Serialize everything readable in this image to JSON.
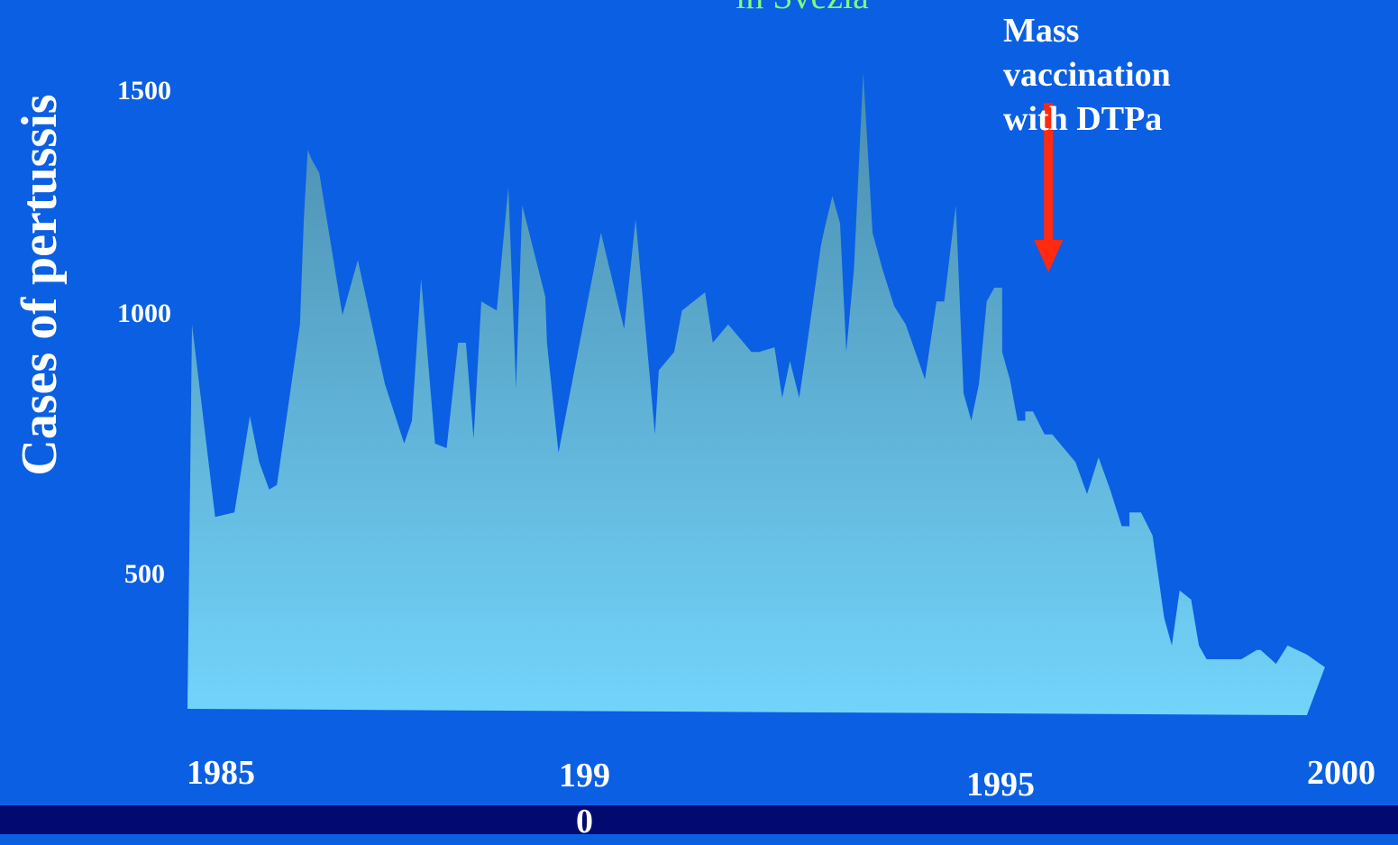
{
  "slide": {
    "title_fragment": "in Svezia",
    "annotation": "Mass\nvaccination\nwith DTPa",
    "colors": {
      "background": "#0b5fe2",
      "footer_band": "#020a72",
      "title": "#7cfc7c",
      "arrow": "#ff2a10",
      "area_top": "#4a8cad",
      "area_bottom": "#73d4fb"
    }
  },
  "chart_data": {
    "type": "area",
    "title": "in Svezia",
    "xlabel": "",
    "ylabel": "Cases of pertussis",
    "yticks": [
      500,
      1000,
      1500
    ],
    "xtick_labels": [
      {
        "value": 1985,
        "label": "1985"
      },
      {
        "value": 1990,
        "label": "199\n0"
      },
      {
        "value": 1995,
        "label": "1995"
      },
      {
        "value": 2000,
        "label": "2000"
      }
    ],
    "annotations": [
      {
        "text": "Mass\nvaccination\nwith DTPa",
        "x": 1996.1,
        "arrow": "down"
      }
    ],
    "grid": false,
    "legend": "none",
    "x": [
      1985.0,
      1985.3,
      1985.55,
      1985.75,
      1985.87,
      1985.87,
      1986.0,
      1986.0,
      1986.1,
      1986.4,
      1986.45,
      1986.5,
      1986.55,
      1986.65,
      1986.95,
      1987.15,
      1987.15,
      1987.5,
      1987.75,
      1987.75,
      1987.85,
      1987.85,
      1987.97,
      1988.15,
      1988.3,
      1988.45,
      1988.55,
      1988.65,
      1988.75,
      1988.95,
      1989.1,
      1989.1,
      1989.2,
      1989.28,
      1989.28,
      1989.58,
      1989.58,
      1989.6,
      1989.6,
      1989.75,
      1989.75,
      1990.3,
      1990.6,
      1990.75,
      1991.0,
      1991.05,
      1991.05,
      1991.25,
      1991.35,
      1991.35,
      1991.65,
      1991.75,
      1991.75,
      1991.95,
      1992.25,
      1992.35,
      1992.55,
      1992.65,
      1992.65,
      1992.75,
      1992.75,
      1992.87,
      1992.87,
      1992.95,
      1993.05,
      1993.15,
      1993.2,
      1993.3,
      1993.4,
      1993.48,
      1993.48,
      1993.58,
      1993.58,
      1993.7,
      1993.82,
      1993.82,
      1993.95,
      1994.1,
      1994.25,
      1994.5,
      1994.5,
      1994.65,
      1994.65,
      1994.75,
      1994.75,
      1994.9,
      1994.9,
      1995.0,
      1995.1,
      1995.2,
      1995.2,
      1995.3,
      1995.4,
      1995.5,
      1995.5,
      1995.6,
      1995.7,
      1995.8,
      1995.8,
      1995.9,
      1996.05,
      1996.15,
      1996.15,
      1996.45,
      1996.6,
      1996.75,
      1996.75,
      1996.9,
      1996.9,
      1997.05,
      1997.15,
      1997.15,
      1997.3,
      1997.45,
      1997.45,
      1997.6,
      1997.6,
      1997.7,
      1997.7,
      1997.8,
      1997.8,
      1997.95,
      1998.05,
      1998.05,
      1998.15,
      1998.25,
      1998.35,
      1998.4,
      1998.4,
      1998.5,
      1998.5,
      1998.6,
      1998.8,
      1998.85,
      1998.85,
      1999.05,
      1999.05,
      1999.2,
      1999.45
    ],
    "values": [
      1000,
      580,
      590,
      800,
      700,
      700,
      640,
      640,
      650,
      1000,
      1230,
      1380,
      1360,
      1330,
      1020,
      1140,
      1140,
      870,
      740,
      740,
      790,
      790,
      1100,
      740,
      730,
      960,
      960,
      750,
      1050,
      1030,
      1300,
      1300,
      860,
      1260,
      1260,
      1060,
      1060,
      960,
      960,
      720,
      720,
      1200,
      990,
      1230,
      760,
      900,
      900,
      940,
      1030,
      1030,
      1070,
      960,
      960,
      1000,
      940,
      940,
      950,
      840,
      840,
      920,
      920,
      840,
      840,
      930,
      1050,
      1170,
      1210,
      1280,
      1220,
      940,
      940,
      1120,
      1120,
      1550,
      1200,
      1200,
      1120,
      1040,
      1000,
      880,
      880,
      1050,
      1050,
      1050,
      1050,
      1260,
      1260,
      850,
      790,
      870,
      870,
      1050,
      1080,
      1080,
      940,
      880,
      790,
      790,
      810,
      810,
      760,
      760,
      760,
      700,
      630,
      710,
      710,
      640,
      640,
      560,
      560,
      590,
      590,
      540,
      540,
      360,
      360,
      300,
      300,
      420,
      420,
      400,
      300,
      300,
      270,
      270,
      270,
      270,
      270,
      270,
      270,
      270,
      290,
      290,
      290,
      260,
      260,
      300,
      280
    ]
  }
}
